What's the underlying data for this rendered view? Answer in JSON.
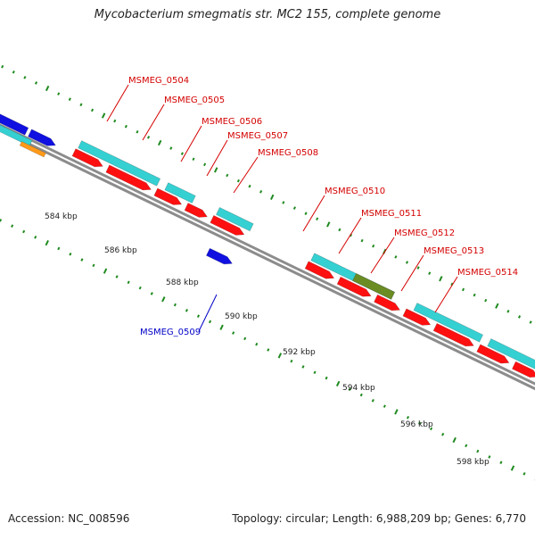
{
  "title": "Mycobacterium smegmatis str. MC2 155, complete genome",
  "footer": {
    "accession": "Accession: NC_008596",
    "summary": "Topology: circular; Length: 6,988,209 bp; Genes: 6,770"
  },
  "colors": {
    "cyan": "#35d0d2",
    "red": "#ff1010",
    "blue": "#1010e0",
    "olive": "#6b8c23",
    "orange": "#ff9a1a",
    "track": "#8c8c8c",
    "tick": "#1f8a1f",
    "label_red": "#d40000",
    "label_blue": "#0000c8"
  },
  "kbp_ticks": [
    "584 kbp",
    "586 kbp",
    "588 kbp",
    "590 kbp",
    "592 kbp",
    "594 kbp",
    "596 kbp",
    "598 kbp"
  ],
  "gene_labels": [
    {
      "name": "MSMEG_0504",
      "color": "red"
    },
    {
      "name": "MSMEG_0505",
      "color": "red"
    },
    {
      "name": "MSMEG_0506",
      "color": "red"
    },
    {
      "name": "MSMEG_0507",
      "color": "red"
    },
    {
      "name": "MSMEG_0508",
      "color": "red"
    },
    {
      "name": "MSMEG_0510",
      "color": "red"
    },
    {
      "name": "MSMEG_0511",
      "color": "red"
    },
    {
      "name": "MSMEG_0512",
      "color": "red"
    },
    {
      "name": "MSMEG_0513",
      "color": "red"
    },
    {
      "name": "MSMEG_0514",
      "color": "red"
    },
    {
      "name": "MSMEG_0509",
      "color": "blue"
    }
  ]
}
